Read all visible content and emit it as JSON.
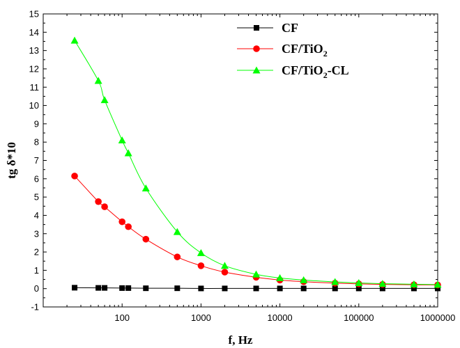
{
  "chart_data": {
    "type": "line",
    "x_scale": "log",
    "xlabel": "f, Hz",
    "ylabel": "tg δ*10",
    "xlim": [
      10,
      1000000
    ],
    "ylim": [
      -1,
      15
    ],
    "x_tick_labels": [
      "100",
      "1000",
      "10000",
      "100000",
      "1000000"
    ],
    "y_tick_labels": [
      "-1",
      "0",
      "1",
      "2",
      "3",
      "4",
      "5",
      "6",
      "7",
      "8",
      "9",
      "10",
      "11",
      "12",
      "13",
      "14",
      "15"
    ],
    "grid": false,
    "legend_position": "top-right",
    "x": [
      25,
      50,
      60,
      100,
      120,
      200,
      500,
      1000,
      2000,
      5000,
      10000,
      20000,
      50000,
      100000,
      200000,
      500000,
      1000000
    ],
    "series": [
      {
        "name": "CF",
        "name_parts": [
          "CF",
          "",
          ""
        ],
        "marker": "square",
        "color": "#000000",
        "values": [
          0.05,
          0.04,
          0.04,
          0.03,
          0.03,
          0.02,
          0.02,
          0.01,
          0.01,
          0.01,
          0.01,
          0.01,
          0.01,
          0.01,
          0.01,
          0.01,
          0.01
        ]
      },
      {
        "name": "CF/TiO2",
        "name_parts": [
          "CF/TiO",
          "2",
          ""
        ],
        "marker": "circle",
        "color": "#ff0000",
        "values": [
          6.15,
          4.75,
          4.47,
          3.65,
          3.38,
          2.7,
          1.73,
          1.25,
          0.9,
          0.62,
          0.47,
          0.38,
          0.3,
          0.26,
          0.23,
          0.21,
          0.2
        ]
      },
      {
        "name": "CF/TiO2-CL",
        "name_parts": [
          "CF/TiO",
          "2",
          "-CL"
        ],
        "marker": "triangle",
        "color": "#00ff00",
        "values": [
          13.55,
          11.35,
          10.3,
          8.1,
          7.4,
          5.48,
          3.1,
          1.95,
          1.25,
          0.78,
          0.58,
          0.47,
          0.37,
          0.31,
          0.27,
          0.24,
          0.22
        ]
      }
    ]
  }
}
